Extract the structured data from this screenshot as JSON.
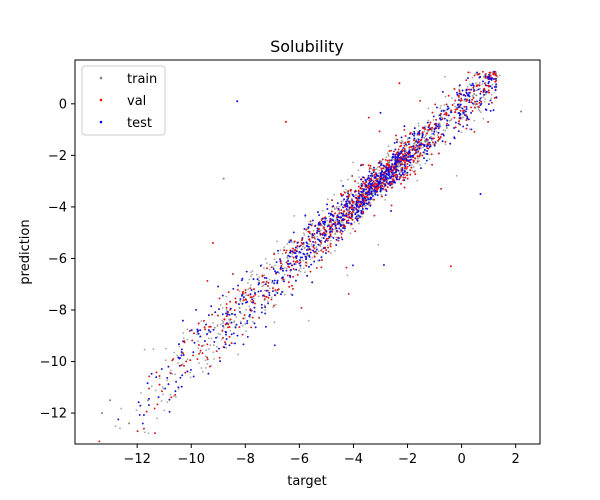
{
  "chart_data": {
    "type": "scatter",
    "title": "Solubility",
    "xlabel": "target",
    "ylabel": "prediction",
    "xlim": [
      -14.3,
      2.9
    ],
    "ylim": [
      -13.2,
      1.7
    ],
    "x_ticks": [
      -12,
      -10,
      -8,
      -6,
      -4,
      -2,
      0,
      2
    ],
    "y_ticks": [
      -12,
      -10,
      -8,
      -6,
      -4,
      -2,
      0
    ],
    "x_tick_labels": [
      "−12",
      "−10",
      "−8",
      "−6",
      "−4",
      "−2",
      "0",
      "2"
    ],
    "y_tick_labels": [
      "−12",
      "−10",
      "−8",
      "−6",
      "−4",
      "−2",
      "0"
    ],
    "grid": false,
    "legend_placement": "upper-left",
    "series": [
      {
        "name": "train",
        "color": "#808080",
        "approx_points": 7000
      },
      {
        "name": "val",
        "color": "#ff0000",
        "approx_points": 900
      },
      {
        "name": "test",
        "color": "#0000ff",
        "approx_points": 900
      }
    ],
    "notable_points": [
      {
        "series": "train",
        "x": -13.3,
        "y": -12.0
      },
      {
        "series": "train",
        "x": -12.3,
        "y": -12.4
      },
      {
        "series": "train",
        "x": -13.0,
        "y": -11.5
      },
      {
        "series": "train",
        "x": -11.6,
        "y": -11.5
      },
      {
        "series": "test",
        "x": -8.3,
        "y": 0.1
      },
      {
        "series": "val",
        "x": -9.2,
        "y": -5.4
      },
      {
        "series": "train",
        "x": -8.8,
        "y": -2.9
      },
      {
        "series": "val",
        "x": -2.3,
        "y": 0.8
      },
      {
        "series": "val",
        "x": -0.4,
        "y": -6.3
      },
      {
        "series": "train",
        "x": 2.2,
        "y": -0.3
      },
      {
        "series": "test",
        "x": 0.7,
        "y": -3.5
      },
      {
        "series": "val",
        "x": -6.5,
        "y": -0.7
      }
    ]
  }
}
